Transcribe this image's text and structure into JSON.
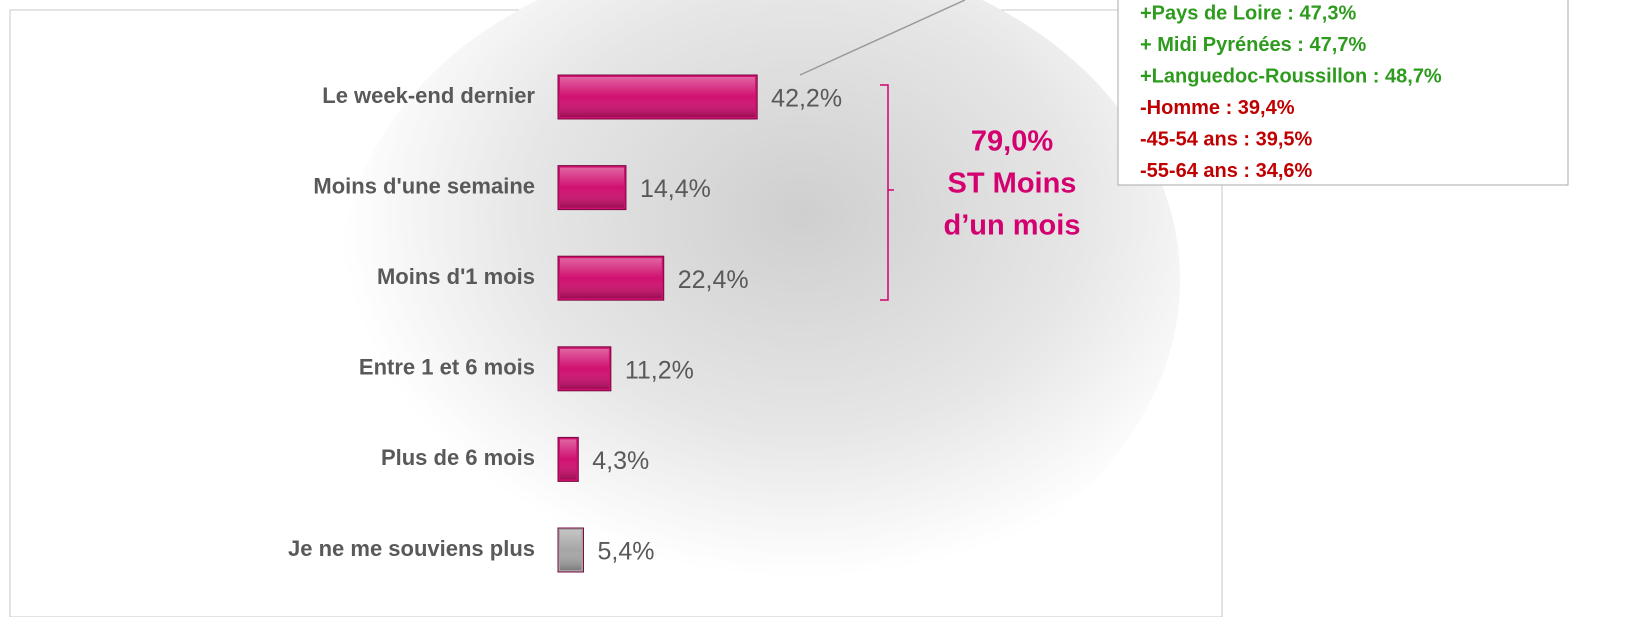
{
  "chart_data": {
    "type": "bar",
    "orientation": "horizontal",
    "categories": [
      "Le week-end dernier",
      "Moins d'une semaine",
      "Moins d'1 mois",
      "Entre 1 et 6 mois",
      "Plus de 6 mois",
      "Je ne me souviens plus"
    ],
    "values": [
      42.2,
      14.4,
      22.4,
      11.2,
      4.3,
      5.4
    ],
    "value_labels": [
      "42,2%",
      "14,4%",
      "22,4%",
      "11,2%",
      "4,3%",
      "5,4%"
    ],
    "colors": [
      "#d0106f",
      "#d0106f",
      "#d0106f",
      "#d0106f",
      "#d0106f",
      "#a6a6a6"
    ],
    "bracket_text": [
      "79,0%",
      "ST Moins",
      "d’un mois"
    ],
    "bracket_color": "#d4006f",
    "callout": [
      {
        "text": "+Pays de Loire : 47,3%",
        "color": "#2e9b1e"
      },
      {
        "text": "+ Midi Pyrénées : 47,7%",
        "color": "#2e9b1e"
      },
      {
        "text": "+Languedoc-Roussillon : 48,7%",
        "color": "#2e9b1e"
      },
      {
        "text": "-Homme : 39,4%",
        "color": "#c00000"
      },
      {
        "text": "-45-54 ans : 39,5%",
        "color": "#c00000"
      },
      {
        "text": "-55-64 ans : 34,6%",
        "color": "#c00000"
      }
    ]
  }
}
